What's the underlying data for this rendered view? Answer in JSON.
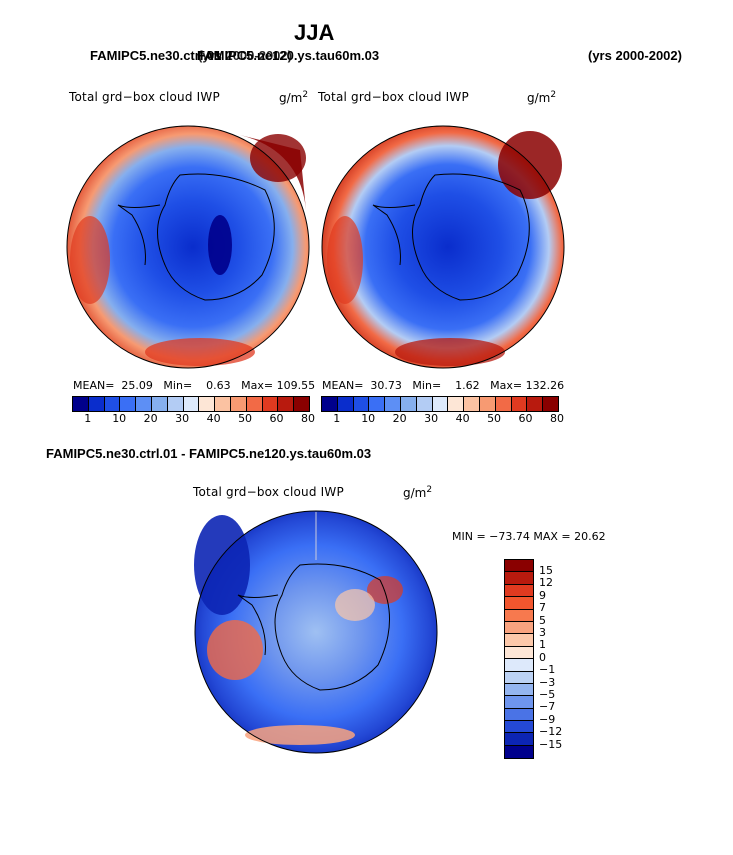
{
  "title": "JJA",
  "left_case": "FAMIPC5.ne30.ctrl.01",
  "center_case": "FAMIPC5.ne120.ys.tau60m.03",
  "left_years": "(yrs 2000-2002)",
  "right_years": "(yrs 2000-2002)",
  "panels": [
    {
      "label": "Total grd−box cloud IWP",
      "unit_base": "g/m",
      "unit_exp": "2",
      "mean_label": "MEAN=",
      "mean": "25.09",
      "min_label": "Min=",
      "min": "0.63",
      "max_label": "Max=",
      "max": "109.55"
    },
    {
      "label": "Total grd−box cloud IWP",
      "unit_base": "g/m",
      "unit_exp": "2",
      "mean_label": "MEAN=",
      "mean": "30.73",
      "min_label": "Min=",
      "min": "1.62",
      "max_label": "Max=",
      "max": "132.26"
    }
  ],
  "colorbar": {
    "ticks": [
      "1",
      "10",
      "20",
      "30",
      "40",
      "50",
      "60",
      "80"
    ],
    "colors": [
      "#00008c",
      "#0a2dcc",
      "#1f4fe6",
      "#3a6ff5",
      "#5d8ff5",
      "#86afee",
      "#b3ccf4",
      "#dde9fb",
      "#fde6d6",
      "#fbc2a2",
      "#f79a72",
      "#f26a46",
      "#e03a20",
      "#b81a0e",
      "#8a0000"
    ]
  },
  "diff": {
    "title": "FAMIPC5.ne30.ctrl.01 - FAMIPC5.ne120.ys.tau60m.03",
    "label": "Total grd−box cloud IWP",
    "unit_base": "g/m",
    "unit_exp": "2",
    "minmax": "MIN = −73.74 MAX =  20.62",
    "levels": [
      "15",
      "12",
      "9",
      "7",
      "5",
      "3",
      "1",
      "0",
      "−1",
      "−3",
      "−5",
      "−7",
      "−9",
      "−12",
      "−15"
    ],
    "colors": [
      "#8a0000",
      "#b81a0e",
      "#e03a20",
      "#f2562e",
      "#f7794e",
      "#f9a37f",
      "#fcc8aa",
      "#fde6d6",
      "#dde9fb",
      "#bcd2f4",
      "#94b5f0",
      "#6e95ee",
      "#4a73e6",
      "#2449d6",
      "#0c25b4",
      "#00008c"
    ]
  }
}
